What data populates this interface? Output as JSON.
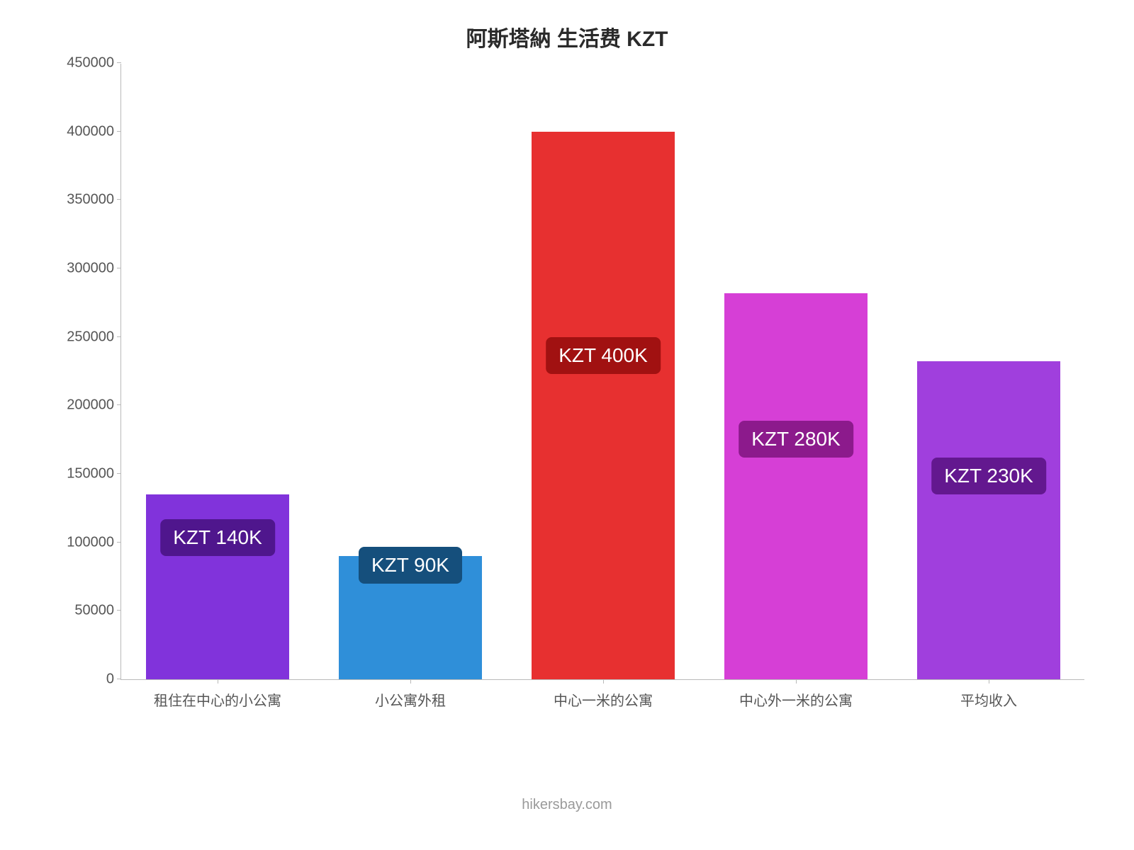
{
  "chart": {
    "type": "bar",
    "title": "阿斯塔納 生活费 KZT",
    "title_fontsize": 30,
    "title_color": "#2a2a2a",
    "background_color": "#ffffff",
    "axis_color": "#b9b9b9",
    "ylim": [
      0,
      450000
    ],
    "ytick_step": 50000,
    "ytick_labels": [
      "0",
      "50000",
      "100000",
      "150000",
      "200000",
      "250000",
      "300000",
      "350000",
      "400000",
      "450000"
    ],
    "ytick_fontsize": 20,
    "ytick_color": "#565656",
    "xlabel_fontsize": 20,
    "xlabel_color": "#565656",
    "bar_width_ratio": 0.74,
    "badge_fontsize": 28,
    "badge_text_color": "#ffffff",
    "categories": [
      {
        "label": "租住在中心的小公寓",
        "value": 135000,
        "color": "#8133db",
        "badge_text": "KZT 140K",
        "badge_bg": "#4f168d",
        "badge_y_ratio": 0.2
      },
      {
        "label": "小公寓外租",
        "value": 90000,
        "color": "#2f8fd9",
        "badge_text": "KZT 90K",
        "badge_bg": "#154f7c",
        "badge_y_ratio": 0.155
      },
      {
        "label": "中心一米的公寓",
        "value": 400000,
        "color": "#e73030",
        "badge_text": "KZT 400K",
        "badge_bg": "#a11111",
        "badge_y_ratio": 0.495
      },
      {
        "label": "中心外一米的公寓",
        "value": 282000,
        "color": "#d63fd6",
        "badge_text": "KZT 280K",
        "badge_bg": "#8c1a8c",
        "badge_y_ratio": 0.36
      },
      {
        "label": "平均收入",
        "value": 232000,
        "color": "#a03fdd",
        "badge_text": "KZT 230K",
        "badge_bg": "#63188f",
        "badge_y_ratio": 0.3
      }
    ],
    "footer": "hikersbay.com",
    "footer_fontsize": 20,
    "footer_color": "#9a9a9a"
  }
}
